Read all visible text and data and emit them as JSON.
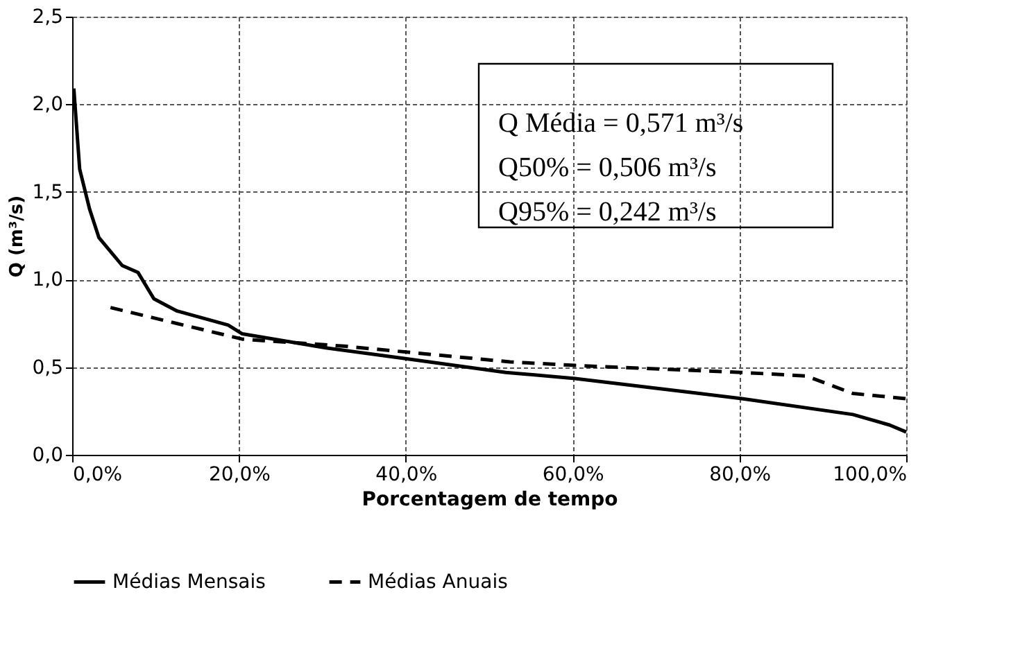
{
  "chart_data": {
    "type": "line",
    "xlabel": "Porcentagem de tempo",
    "ylabel": "Q (m³/s)",
    "series": [
      {
        "name": "Médias Mensais",
        "color": "#000000",
        "line_style": "solid",
        "x": [
          0.2,
          0.9,
          2.1,
          3.2,
          6.0,
          7.9,
          9.8,
          12.6,
          18.7,
          20.4,
          30.4,
          39.8,
          52.0,
          60.3,
          75.2,
          80.3,
          93.6,
          98.0,
          100.0
        ],
        "values": [
          2.09,
          1.63,
          1.4,
          1.24,
          1.08,
          1.04,
          0.89,
          0.82,
          0.74,
          0.69,
          0.61,
          0.55,
          0.47,
          0.435,
          0.35,
          0.32,
          0.23,
          0.17,
          0.13
        ]
      },
      {
        "name": "Médias Anuais",
        "color": "#000000",
        "line_style": "dashed",
        "x": [
          4.6,
          20.4,
          32.6,
          52.5,
          60.3,
          80.3,
          88.0,
          93.6,
          100.0
        ],
        "values": [
          0.84,
          0.66,
          0.62,
          0.53,
          0.51,
          0.47,
          0.45,
          0.35,
          0.32
        ]
      }
    ],
    "xlim": [
      0,
      100
    ],
    "ylim": [
      0,
      2.5
    ],
    "xticks": [
      {
        "value": 0,
        "label": "0,0%"
      },
      {
        "value": 20,
        "label": "20,0%"
      },
      {
        "value": 40,
        "label": "40,0%"
      },
      {
        "value": 60,
        "label": "60,0%"
      },
      {
        "value": 80,
        "label": "80,0%"
      },
      {
        "value": 100,
        "label": "100,0%"
      }
    ],
    "yticks": [
      {
        "value": 0,
        "label": "0,0"
      },
      {
        "value": 0.5,
        "label": "0,5"
      },
      {
        "value": 1.0,
        "label": "1,0"
      },
      {
        "value": 1.5,
        "label": "1,5"
      },
      {
        "value": 2.0,
        "label": "2,0"
      },
      {
        "value": 2.5,
        "label": "2,5"
      }
    ],
    "grid": true,
    "legend": "bottom",
    "marker": "none",
    "annotations": [
      "Q Média = 0,571 m³/s",
      "Q50% = 0,506 m³/s",
      "Q95% = 0,242 m³/s"
    ]
  }
}
